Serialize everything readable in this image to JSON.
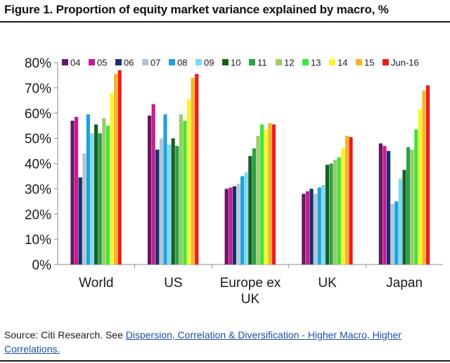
{
  "figure": {
    "title": "Figure 1. Proportion of equity market variance explained by macro, %"
  },
  "source": {
    "prefix": "Source: Citi Research. See ",
    "link_text": "Dispersion, Correlation & Diversification - Higher Macro, Higher Correlations."
  },
  "chart_data": {
    "type": "bar",
    "title": "Figure 1. Proportion of equity market variance explained by macro, %",
    "xlabel": "",
    "ylabel": "",
    "ylim": [
      0,
      80
    ],
    "yticks": [
      0,
      10,
      20,
      30,
      40,
      50,
      60,
      70,
      80
    ],
    "ytick_labels": [
      "0%",
      "10%",
      "20%",
      "30%",
      "40%",
      "50%",
      "60%",
      "70%",
      "80%"
    ],
    "grid": false,
    "legend_position": "top",
    "categories": [
      "World",
      "US",
      "Europe ex UK",
      "UK",
      "Japan"
    ],
    "category_lines": [
      [
        "World"
      ],
      [
        "US"
      ],
      [
        "Europe ex",
        "UK"
      ],
      [
        "UK"
      ],
      [
        "Japan"
      ]
    ],
    "series": [
      {
        "name": "04",
        "color": "#66195e",
        "values": [
          57,
          59,
          30,
          28,
          48
        ]
      },
      {
        "name": "05",
        "color": "#cc1a96",
        "values": [
          58.5,
          63.5,
          30.5,
          29,
          47
        ]
      },
      {
        "name": "06",
        "color": "#16306a",
        "values": [
          34.5,
          45.5,
          31,
          30,
          45
        ]
      },
      {
        "name": "07",
        "color": "#b3c6d6",
        "values": [
          44,
          50,
          32,
          28,
          24
        ]
      },
      {
        "name": "08",
        "color": "#1ca3de",
        "values": [
          59.5,
          59.5,
          35,
          30.5,
          25
        ]
      },
      {
        "name": "09",
        "color": "#7fd8f5",
        "values": [
          52,
          47.5,
          36.5,
          31.5,
          34
        ]
      },
      {
        "name": "10",
        "color": "#16601f",
        "values": [
          55.5,
          50,
          43,
          39.5,
          37.5
        ]
      },
      {
        "name": "11",
        "color": "#2aa04a",
        "values": [
          52,
          47,
          46,
          40,
          46.5
        ]
      },
      {
        "name": "12",
        "color": "#9ccc65",
        "values": [
          58,
          59.5,
          51,
          41.5,
          45.5
        ]
      },
      {
        "name": "13",
        "color": "#3ce83c",
        "values": [
          55,
          57,
          55.5,
          42.5,
          53.5
        ]
      },
      {
        "name": "14",
        "color": "#f9f52c",
        "values": [
          68,
          65.5,
          53.5,
          46,
          61.5
        ]
      },
      {
        "name": "15",
        "color": "#f7b526",
        "values": [
          75.5,
          74,
          56,
          51,
          69
        ]
      },
      {
        "name": "Jun-16",
        "color": "#ee1c1c",
        "values": [
          77,
          75.5,
          55.5,
          50.5,
          71
        ]
      }
    ]
  }
}
